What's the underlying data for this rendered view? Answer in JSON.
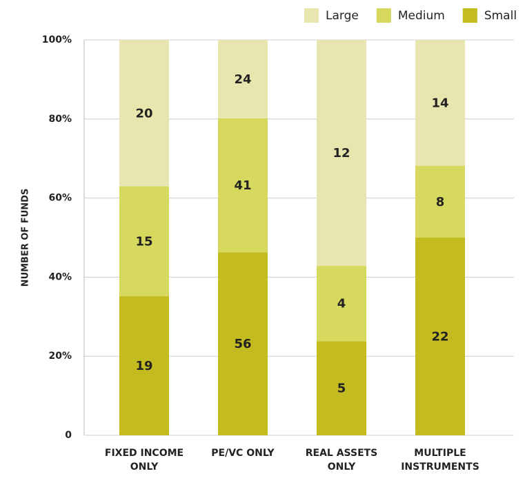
{
  "chart_data": {
    "type": "bar",
    "stacking": "percent",
    "y_label": "NUMBER OF FUNDS",
    "categories": [
      "FIXED INCOME\nONLY",
      "PE/VC ONLY",
      "REAL ASSETS\nONLY",
      "MULTIPLE\nINSTRUMENTS"
    ],
    "series": [
      {
        "name": "Large",
        "color": "#e6e6ae",
        "values": [
          20,
          24,
          12,
          14
        ]
      },
      {
        "name": "Medium",
        "color": "#d7d85e",
        "values": [
          15,
          41,
          4,
          8
        ]
      },
      {
        "name": "Small",
        "color": "#c3bb1f",
        "values": [
          19,
          56,
          5,
          22
        ]
      }
    ],
    "ylim": [
      0,
      100
    ],
    "yticks": [
      0,
      {
        "value": 20,
        "label": "20%"
      },
      {
        "value": 40,
        "label": "40%"
      },
      {
        "value": 60,
        "label": "60%"
      },
      {
        "value": 80,
        "label": "80%"
      },
      {
        "value": 100,
        "label": "100%"
      }
    ],
    "grid": true,
    "legend": "top-right"
  }
}
